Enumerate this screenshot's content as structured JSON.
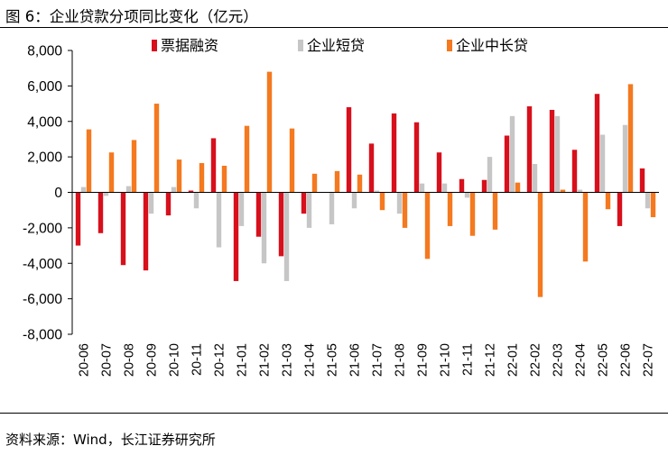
{
  "title": "图 6：企业贷款分项同比变化（亿元）",
  "source": "资料来源：Wind，长江证券研究所",
  "colors": {
    "series1": "#d7101c",
    "series2": "#c6c6c6",
    "series3": "#f4791f"
  },
  "chart_data": {
    "type": "bar",
    "title": "企业贷款分项同比变化（亿元）",
    "xlabel": "",
    "ylabel": "",
    "ylim": [
      -8000,
      8000
    ],
    "yticks": [
      8000,
      6000,
      4000,
      2000,
      0,
      -2000,
      -4000,
      -6000,
      -8000
    ],
    "ytick_labels": [
      "8,000",
      "6,000",
      "4,000",
      "2,000",
      "0",
      "-2,000",
      "-4,000",
      "-6,000",
      "-8,000"
    ],
    "legend_position": "top-center",
    "categories": [
      "20-06",
      "20-07",
      "20-08",
      "20-09",
      "20-10",
      "20-11",
      "20-12",
      "21-01",
      "21-02",
      "21-03",
      "21-04",
      "21-05",
      "21-06",
      "21-07",
      "21-08",
      "21-09",
      "21-10",
      "21-11",
      "21-12",
      "22-01",
      "22-02",
      "22-03",
      "22-04",
      "22-05",
      "22-06",
      "22-07"
    ],
    "series": [
      {
        "name": "票据融资",
        "color": "#d7101c",
        "values": [
          -3000,
          -2300,
          -4100,
          -4400,
          -1300,
          100,
          3050,
          -5000,
          -2500,
          -3600,
          -1200,
          0,
          4800,
          2750,
          4450,
          3950,
          2250,
          750,
          700,
          3200,
          4850,
          4650,
          2400,
          5550,
          -1900,
          1350
        ]
      },
      {
        "name": "企业短贷",
        "color": "#c6c6c6",
        "values": [
          300,
          -200,
          350,
          -1200,
          300,
          -900,
          -3100,
          -1900,
          -4000,
          -5000,
          -2000,
          -1800,
          -900,
          100,
          -1200,
          500,
          500,
          -300,
          2000,
          4300,
          1600,
          4300,
          150,
          3250,
          3800,
          -900
        ]
      },
      {
        "name": "企业中长贷",
        "color": "#f4791f",
        "values": [
          3550,
          2250,
          2950,
          5000,
          1850,
          1650,
          1500,
          3750,
          6800,
          3600,
          1050,
          1200,
          1000,
          -1000,
          -2000,
          -3750,
          -1900,
          -2450,
          -2100,
          550,
          -5900,
          150,
          -3900,
          -950,
          6100,
          -1400
        ]
      }
    ]
  }
}
